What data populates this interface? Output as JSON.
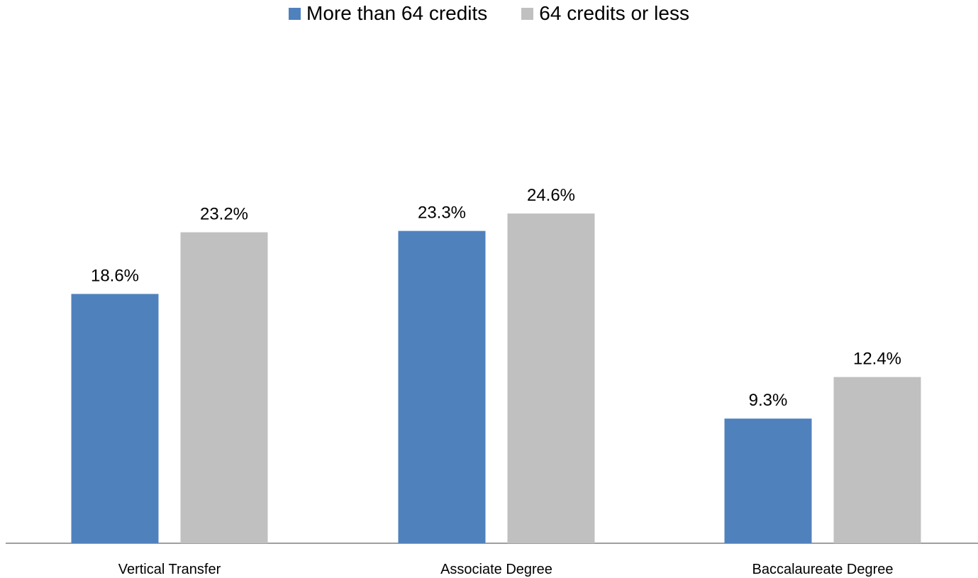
{
  "chart_data": {
    "type": "bar",
    "categories": [
      "Vertical Transfer",
      "Associate Degree",
      "Baccalaureate Degree"
    ],
    "series": [
      {
        "name": "More than 64 credits",
        "values": [
          18.6,
          23.3,
          9.3
        ],
        "labels": [
          "18.6%",
          "23.3%",
          "9.3%"
        ],
        "color": "#4f81bd"
      },
      {
        "name": "64 credits or less",
        "values": [
          23.2,
          24.6,
          12.4
        ],
        "labels": [
          "23.2%",
          "24.6%",
          "12.4%"
        ],
        "color": "#c0c0c0"
      }
    ],
    "ylim": [
      0,
      30
    ],
    "grid": false,
    "legend_position": "top"
  }
}
